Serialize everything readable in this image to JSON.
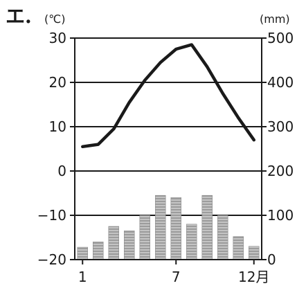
{
  "chart_data": {
    "type": "climograph",
    "panel_label": "エ.",
    "left_axis_unit": "(℃)",
    "right_axis_unit": "(mm)",
    "left_axis": {
      "ylim": [
        -20,
        30
      ],
      "ticks": [
        30,
        20,
        10,
        0,
        -10,
        -20
      ],
      "tick_labels": [
        "30",
        "20",
        "10",
        "0",
        "−10",
        "−20"
      ]
    },
    "right_axis": {
      "ylim": [
        0,
        500
      ],
      "ticks": [
        500,
        400,
        300,
        200,
        100,
        0
      ],
      "tick_labels": [
        "500",
        "400",
        "300",
        "200",
        "100",
        "0"
      ]
    },
    "x_axis": {
      "categories": [
        1,
        2,
        3,
        4,
        5,
        6,
        7,
        8,
        9,
        10,
        11,
        12
      ],
      "tick_labels": [
        {
          "month": 1,
          "text": "1"
        },
        {
          "month": 7,
          "text": "7"
        },
        {
          "month": 12,
          "text": "12月"
        }
      ]
    },
    "gridlines": [
      20,
      10,
      0,
      -10
    ],
    "temperature": [
      5.5,
      6.0,
      9.5,
      15.5,
      20.5,
      24.5,
      27.5,
      28.5,
      23.5,
      17.5,
      12.0,
      7.0
    ],
    "precipitation": [
      28,
      40,
      75,
      65,
      100,
      145,
      140,
      80,
      145,
      100,
      52,
      30
    ],
    "colors": {
      "line": "#1a1a1a",
      "bar_fill": "#a8a8a8",
      "bar_stripe": "#c8c8c8",
      "grid": "#1a1a1a"
    }
  }
}
